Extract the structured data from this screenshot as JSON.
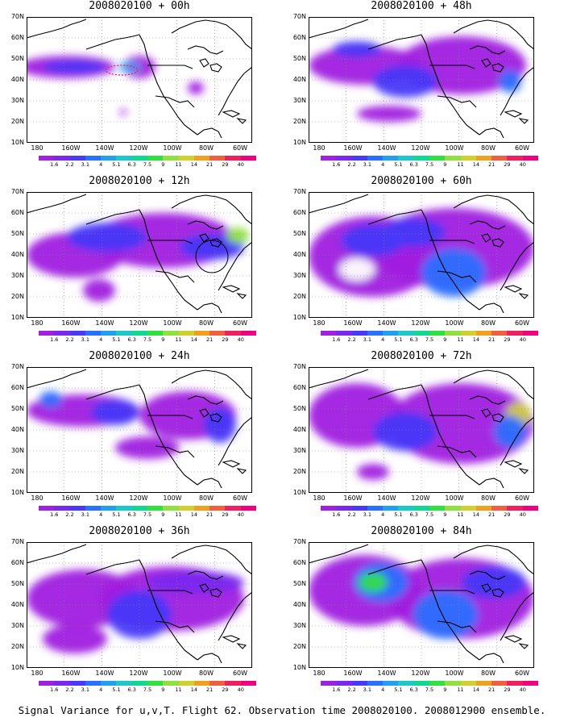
{
  "caption": "Signal Variance for u,v,T. Flight 62. Observation time 2008020100. 2008012900 ensemble.",
  "y_ticks": [
    "70N",
    "60N",
    "50N",
    "40N",
    "30N",
    "20N",
    "10N"
  ],
  "x_ticks": [
    "180",
    "160W",
    "140W",
    "120W",
    "100W",
    "80W",
    "60W"
  ],
  "colorbar": {
    "labels": [
      "1.6",
      "2.2",
      "3.1",
      "4",
      "5.1",
      "6.3",
      "7.5",
      "9",
      "11",
      "14",
      "21",
      "29",
      "40"
    ],
    "colors": [
      "#a020e0",
      "#7a28f0",
      "#4838f8",
      "#2a70ff",
      "#22a0f0",
      "#1fc8c8",
      "#10d890",
      "#30e040",
      "#90e040",
      "#d0d030",
      "#f0a020",
      "#f06040",
      "#f02060",
      "#f00080"
    ]
  },
  "panels": [
    {
      "title": "2008020100 + 00h",
      "level": 0
    },
    {
      "title": "2008020100 + 48h",
      "level": 4
    },
    {
      "title": "2008020100 + 12h",
      "level": 1
    },
    {
      "title": "2008020100 + 60h",
      "level": 5
    },
    {
      "title": "2008020100 + 24h",
      "level": 2
    },
    {
      "title": "2008020100 + 72h",
      "level": 6
    },
    {
      "title": "2008020100 + 36h",
      "level": 3
    },
    {
      "title": "2008020100 + 84h",
      "level": 7
    }
  ]
}
